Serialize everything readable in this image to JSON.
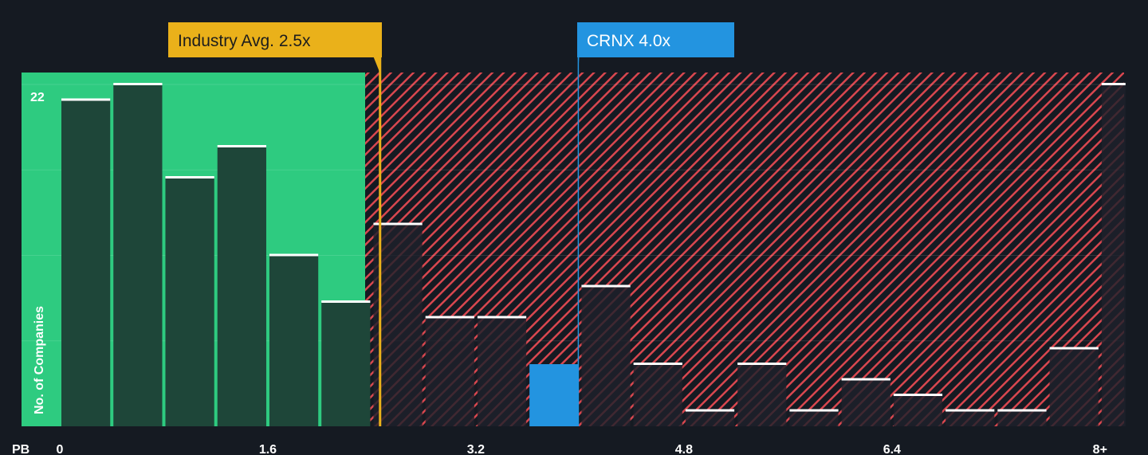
{
  "chart_data": {
    "type": "bar",
    "xlabel": "PB",
    "ylabel": "No. of Companies",
    "bin_width": 0.4,
    "x_ticks": [
      "0",
      "1.6",
      "3.2",
      "4.8",
      "6.4",
      "8+"
    ],
    "x_tick_values": [
      0,
      1.6,
      3.2,
      4.8,
      6.4,
      8
    ],
    "y_ticks": [
      "22"
    ],
    "ylim": [
      0,
      22
    ],
    "bins": [
      "0-0.4",
      "0.4-0.8",
      "0.8-1.2",
      "1.2-1.6",
      "1.6-2.0",
      "2.0-2.4",
      "2.4-2.8",
      "2.8-3.2",
      "3.2-3.6",
      "3.6-4.0",
      "4.0-4.4",
      "4.4-4.8",
      "4.8-5.2",
      "5.2-5.6",
      "5.6-6.0",
      "6.0-6.4",
      "6.4-6.8",
      "6.8-7.2",
      "7.2-7.6",
      "7.6-8.0",
      "8+"
    ],
    "values": [
      21,
      22,
      16,
      18,
      11,
      8,
      13,
      7,
      7,
      4,
      9,
      4,
      1,
      4,
      1,
      3,
      2,
      1,
      1,
      5,
      22
    ],
    "highlight_bin": 9,
    "annotations": [
      {
        "label": "Industry Avg. 2.5x",
        "value": 2.5,
        "color": "#eab11a"
      },
      {
        "label": "CRNX 4.0x",
        "value": 4.0,
        "color": "#2394e0"
      }
    ],
    "colors": {
      "background": "#151a22",
      "undervalued_zone": "#2ecb80",
      "overvalued_hatch": "#d9474f",
      "bar_dark": "#1e4639",
      "highlight_bar": "#2394e0"
    },
    "grid": true
  }
}
